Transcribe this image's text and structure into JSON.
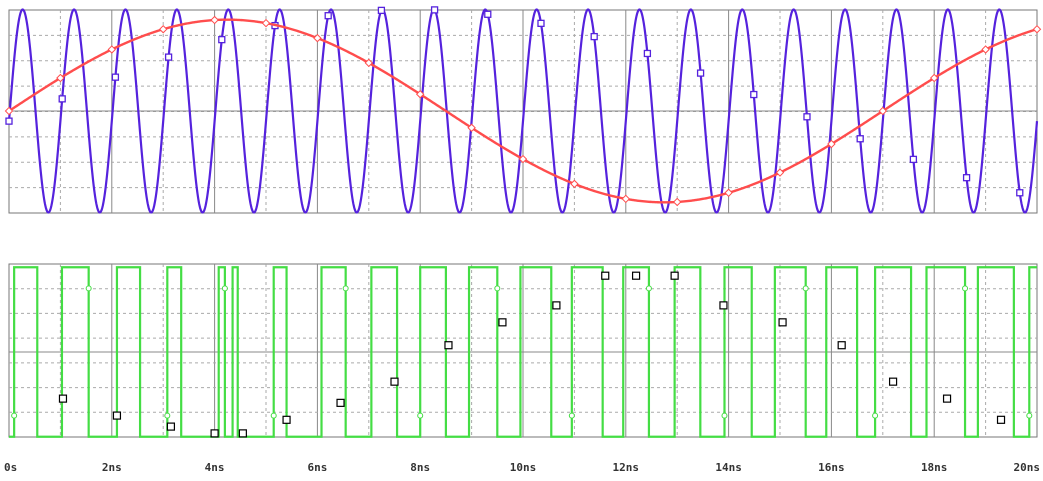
{
  "chart_data": [
    {
      "type": "line",
      "panel": "upper",
      "x_unit": "ns",
      "xlim": [
        0,
        20
      ],
      "grid": true,
      "series": [
        {
          "color": "#5522dd",
          "waveform": "sine",
          "period_ns": 1.0,
          "amplitude": 1.0,
          "phase_at_0": "starting at -0.05 and rising (peak near 0.27ns)",
          "marker": "square"
        },
        {
          "color": "#ff4d4d",
          "waveform": "sine",
          "period_ns": 17.0,
          "amplitude": 0.9,
          "offset": 0.0,
          "peak_at_ns": 4.25,
          "trough_at_ns": 12.75,
          "value_at_0": 0.0,
          "marker": "diamond"
        }
      ]
    },
    {
      "type": "line",
      "panel": "lower",
      "x_unit": "ns",
      "xlim": [
        0,
        20
      ],
      "grid": true,
      "series": [
        {
          "color": "#44dd44",
          "waveform": "square (PWM)",
          "high": 1.0,
          "low": -1.0,
          "transitions_ns": [
            0.1,
            0.55,
            1.03,
            1.55,
            2.1,
            2.55,
            3.08,
            3.35,
            4.08,
            4.35,
            4.2,
            4.45,
            5.15,
            5.4,
            6.08,
            6.55,
            7.05,
            7.55,
            8.0,
            8.5,
            8.95,
            9.5,
            9.95,
            10.55,
            10.95,
            11.55,
            11.95,
            12.45,
            12.95,
            13.45,
            13.92,
            14.45,
            14.9,
            15.5,
            15.9,
            16.5,
            16.85,
            17.55,
            17.85,
            18.6,
            18.85,
            19.55,
            19.85
          ]
        },
        {
          "color": "#000000",
          "marker": "square",
          "x": [
            1.05,
            2.1,
            3.15,
            4.0,
            4.55,
            5.4,
            6.45,
            7.5,
            8.55,
            9.6,
            10.65,
            11.6,
            12.2,
            12.95,
            13.9,
            15.05,
            16.2,
            17.2,
            18.25,
            19.3
          ],
          "y": [
            -0.55,
            -0.75,
            -0.88,
            -0.96,
            -0.96,
            -0.8,
            -0.6,
            -0.35,
            0.08,
            0.35,
            0.55,
            0.9,
            0.9,
            0.9,
            0.55,
            0.35,
            0.08,
            -0.35,
            -0.55,
            -0.8
          ]
        }
      ]
    }
  ],
  "x_axis": {
    "tick_labels": [
      "0s",
      "2ns",
      "4ns",
      "6ns",
      "8ns",
      "10ns",
      "12ns",
      "14ns",
      "16ns",
      "18ns",
      "20ns"
    ],
    "tick_values": [
      0,
      2,
      4,
      6,
      8,
      10,
      12,
      14,
      16,
      18,
      20
    ]
  }
}
